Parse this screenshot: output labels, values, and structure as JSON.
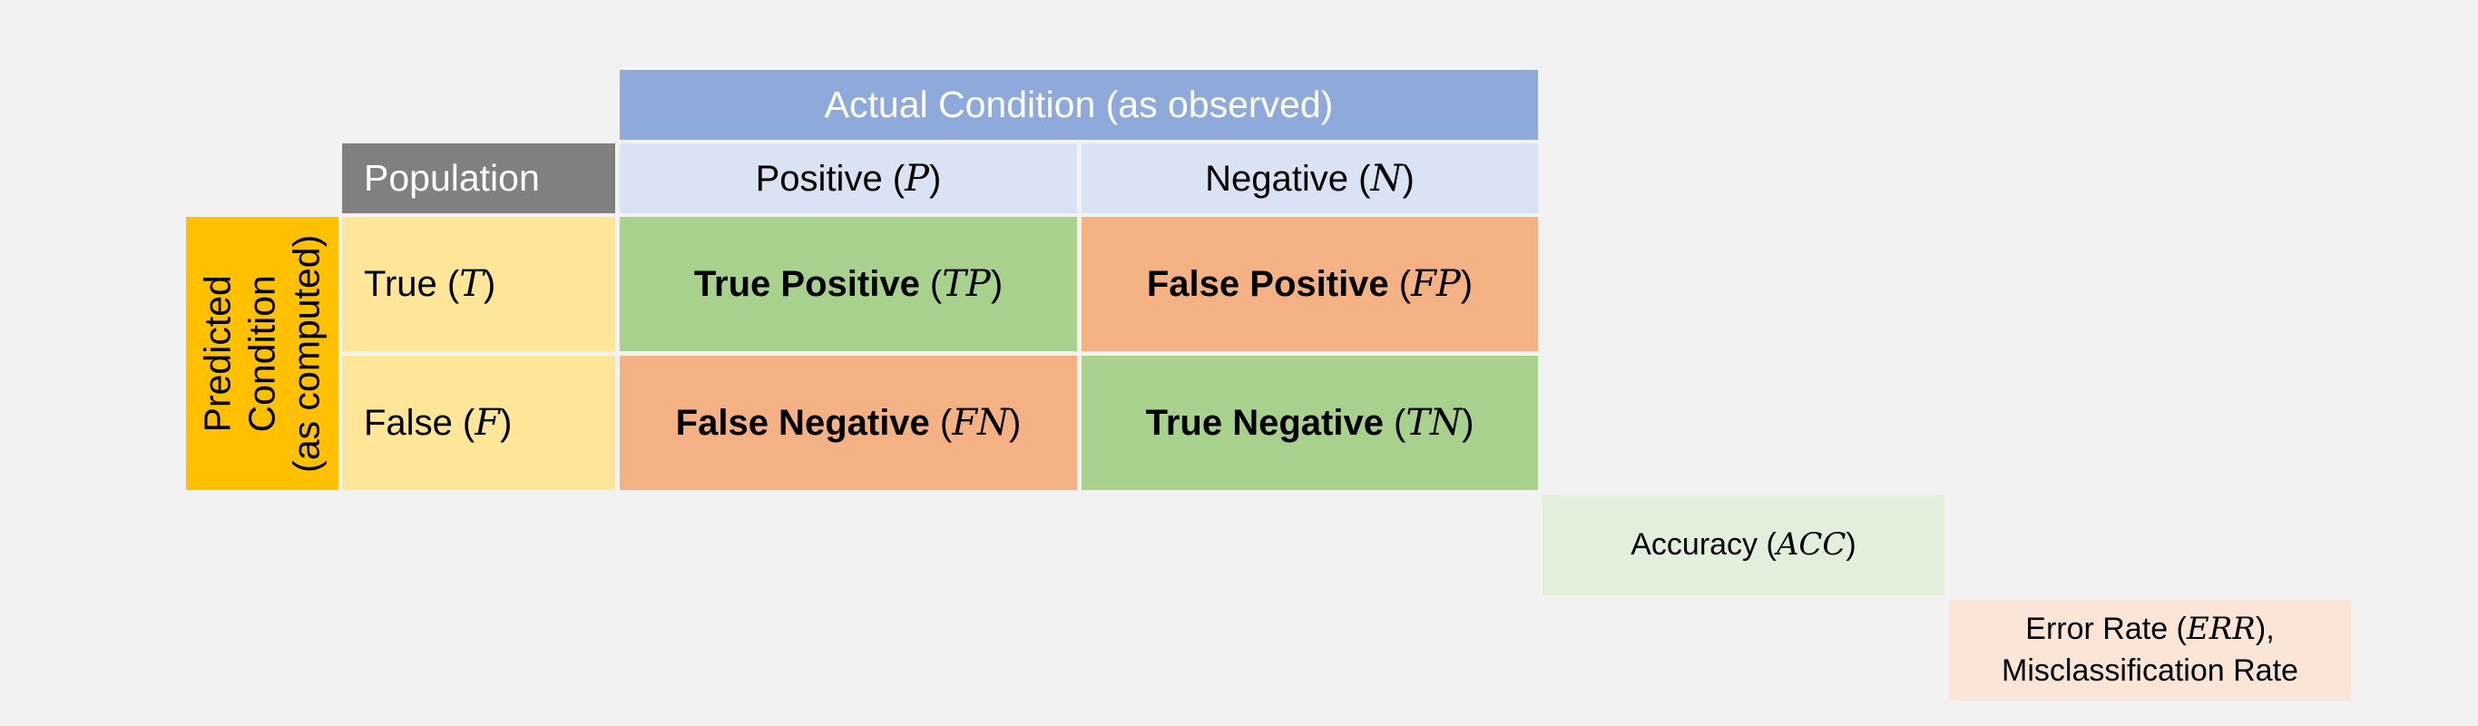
{
  "actual_condition": {
    "label": "Actual Condition (as observed)",
    "color": "#8eaadb"
  },
  "population": {
    "label": "Population",
    "color": "#808080"
  },
  "columns": [
    {
      "text": "Positive (",
      "symbol": "P",
      "close": ")",
      "color": "#dae3f3"
    },
    {
      "text": "Negative (",
      "symbol": "N",
      "close": ")",
      "color": "#dae3f3"
    }
  ],
  "predicted_condition": {
    "lines": [
      "Predicted",
      "Condition",
      "(as computed)"
    ],
    "color": "#ffc000"
  },
  "rows": [
    {
      "text": "True (",
      "symbol": "T",
      "close": ")",
      "color": "#ffe699"
    },
    {
      "text": "False (",
      "symbol": "F",
      "close": ")",
      "color": "#ffe699"
    }
  ],
  "cells": {
    "tp": {
      "text": "True Positive",
      "open": " (",
      "symbol": "TP",
      "close": ")",
      "color": "#a9d18e"
    },
    "fp": {
      "text": "False Positive",
      "open": " (",
      "symbol": "FP",
      "close": ")",
      "color": "#f4b183"
    },
    "fn": {
      "text": "False Negative",
      "open": " (",
      "symbol": "FN",
      "close": ")",
      "color": "#f4b183"
    },
    "tn": {
      "text": "True Negative",
      "open": " (",
      "symbol": "TN",
      "close": ")",
      "color": "#a9d18e"
    }
  },
  "metrics": {
    "accuracy": {
      "text": "Accuracy (",
      "symbol": "ACC",
      "close": ")",
      "color": "#e2efda"
    },
    "error_rate": {
      "text": "Error Rate (",
      "symbol": "ERR",
      "close": "),",
      "line2": "Misclassification Rate",
      "color": "#fbe5d6"
    }
  }
}
